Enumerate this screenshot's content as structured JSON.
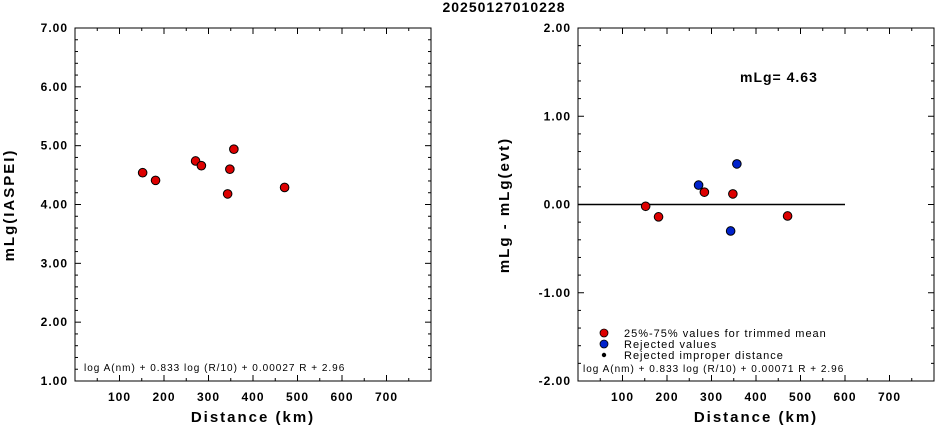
{
  "title": "20250127010228",
  "chart_data": [
    {
      "type": "scatter",
      "ylabel": "mLg(IASPEI)",
      "xlabel": "Distance (km)",
      "xlim": [
        0,
        800
      ],
      "ylim": [
        1.0,
        7.0
      ],
      "xticks": [
        100,
        200,
        300,
        400,
        500,
        600,
        700
      ],
      "xticklabels": [
        "100",
        "200",
        "300",
        "400",
        "500",
        "600",
        "700"
      ],
      "yticks": [
        1.0,
        2.0,
        3.0,
        4.0,
        5.0,
        6.0,
        7.0
      ],
      "yticklabels": [
        "1.00",
        "2.00",
        "3.00",
        "4.00",
        "5.00",
        "6.00",
        "7.00"
      ],
      "formula": "log A(nm) + 0.833 log (R/10) + 0.00027 R + 2.96",
      "points": [
        {
          "x": 152,
          "y": 4.54,
          "color": "#dd0000"
        },
        {
          "x": 181,
          "y": 4.41,
          "color": "#dd0000"
        },
        {
          "x": 271,
          "y": 4.74,
          "color": "#dd0000"
        },
        {
          "x": 284,
          "y": 4.66,
          "color": "#dd0000"
        },
        {
          "x": 343,
          "y": 4.18,
          "color": "#dd0000"
        },
        {
          "x": 348,
          "y": 4.6,
          "color": "#dd0000"
        },
        {
          "x": 357,
          "y": 4.94,
          "color": "#dd0000"
        },
        {
          "x": 471,
          "y": 4.29,
          "color": "#dd0000"
        }
      ]
    },
    {
      "type": "scatter",
      "ylabel": "mLg - mLg(evt)",
      "xlabel": "Distance (km)",
      "xlim": [
        0,
        800
      ],
      "ylim": [
        -2.0,
        2.0
      ],
      "xticks": [
        100,
        200,
        300,
        400,
        500,
        600,
        700
      ],
      "xticklabels": [
        "100",
        "200",
        "300",
        "400",
        "500",
        "600",
        "700"
      ],
      "yticks": [
        -2.0,
        -1.0,
        0.0,
        1.0,
        2.0
      ],
      "yticklabels": [
        "-2.00",
        "-1.00",
        "0.00",
        "1.00",
        "2.00"
      ],
      "reference_line": {
        "y": 0.0,
        "x_from": 0,
        "x_to": 600
      },
      "annotation": "mLg= 4.63",
      "formula": "log A(nm) + 0.833 log (R/10) + 0.00071 R  + 2.96",
      "legend": [
        {
          "label": "25%-75% values for trimmed mean",
          "color": "#dd0000",
          "marker": "large"
        },
        {
          "label": "Rejected values",
          "color": "#0022cc",
          "marker": "large"
        },
        {
          "label": "Rejected improper distance",
          "color": "#000000",
          "marker": "small"
        }
      ],
      "points": [
        {
          "x": 152,
          "y": -0.02,
          "color": "#dd0000"
        },
        {
          "x": 181,
          "y": -0.14,
          "color": "#dd0000"
        },
        {
          "x": 271,
          "y": 0.22,
          "color": "#0022cc"
        },
        {
          "x": 284,
          "y": 0.14,
          "color": "#dd0000"
        },
        {
          "x": 343,
          "y": -0.3,
          "color": "#0022cc"
        },
        {
          "x": 348,
          "y": 0.12,
          "color": "#dd0000"
        },
        {
          "x": 357,
          "y": 0.46,
          "color": "#0022cc"
        },
        {
          "x": 471,
          "y": -0.13,
          "color": "#dd0000"
        }
      ]
    }
  ]
}
